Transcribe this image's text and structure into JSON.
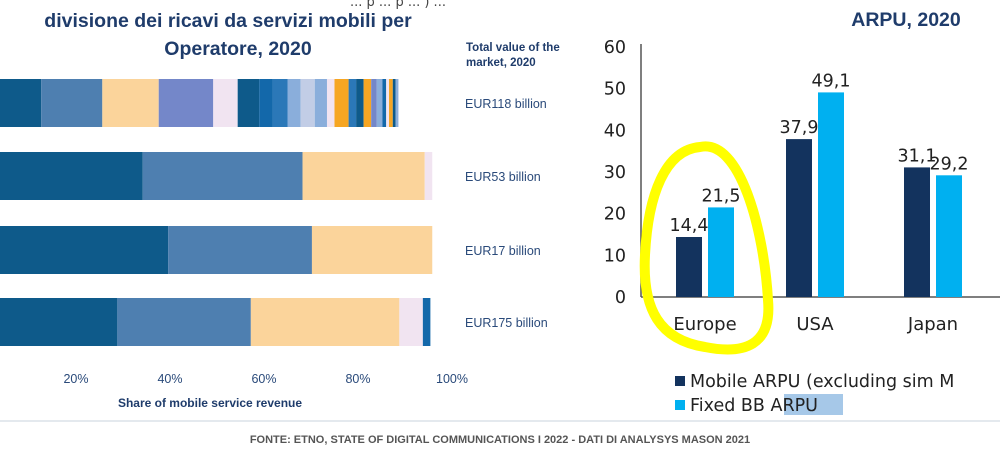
{
  "top_fragment": "... p ... p ... ) ...",
  "left_chart": {
    "title_line1": "divisione dei ricavi da servizi mobili per",
    "title_line2": "Operatore, 2020",
    "totals_header_line1": "Total value of the",
    "totals_header_line2": "market, 2020",
    "xlabel": "Share of mobile service revenue",
    "xticks": [
      "20%",
      "40%",
      "60%",
      "80%",
      "100%"
    ],
    "colors": {
      "c1": "#0e5a8a",
      "c2": "#4e7fb0",
      "c3": "#fbd49b",
      "c4": "#7487c9",
      "c5": "#f1e4f1",
      "c6": "#1368aa",
      "c7": "#2b78b8",
      "c8": "#8aaedb",
      "c9": "#f6a623",
      "c10": "#c2cde6"
    }
  },
  "right_chart": {
    "title": "ARPU, 2020",
    "series_colors": [
      "#13335e",
      "#00b0f0"
    ],
    "highlight_color": "#ffff00",
    "legend_highlight_color": "#a6c8e8"
  },
  "chart_data": [
    {
      "type": "bar",
      "orientation": "horizontal",
      "stacked": true,
      "title": "divisione dei ricavi da servizi mobili per Operatore, 2020",
      "xlabel": "Share of mobile service revenue",
      "xlim": [
        0,
        100
      ],
      "rows": [
        {
          "label": "EUR118 billion",
          "segments": [
            {
              "value": 12.6,
              "color": "c1"
            },
            {
              "value": 13.0,
              "color": "c2"
            },
            {
              "value": 12.0,
              "color": "c3"
            },
            {
              "value": 11.6,
              "color": "c4"
            },
            {
              "value": 5.2,
              "color": "c5"
            },
            {
              "value": 4.6,
              "color": "c1"
            },
            {
              "value": 2.8,
              "color": "c6"
            },
            {
              "value": 3.2,
              "color": "c7"
            },
            {
              "value": 2.8,
              "color": "c8"
            },
            {
              "value": 3.0,
              "color": "c10"
            },
            {
              "value": 2.6,
              "color": "c8"
            },
            {
              "value": 1.6,
              "color": "c5"
            },
            {
              "value": 3.0,
              "color": "c9"
            },
            {
              "value": 1.6,
              "color": "c7"
            },
            {
              "value": 1.6,
              "color": "c1"
            },
            {
              "value": 1.6,
              "color": "c9"
            },
            {
              "value": 1.2,
              "color": "c4"
            },
            {
              "value": 1.2,
              "color": "c8"
            },
            {
              "value": 0.8,
              "color": "c6"
            },
            {
              "value": 0.6,
              "color": "c5"
            },
            {
              "value": 0.8,
              "color": "c9"
            },
            {
              "value": 0.6,
              "color": "c1"
            },
            {
              "value": 0.6,
              "color": "c8"
            }
          ]
        },
        {
          "label": "EUR53 billion",
          "segments": [
            {
              "value": 34.2,
              "color": "c1"
            },
            {
              "value": 34.0,
              "color": "c2"
            },
            {
              "value": 26.0,
              "color": "c3"
            },
            {
              "value": 1.6,
              "color": "c5"
            }
          ]
        },
        {
          "label": "EUR17 billion",
          "segments": [
            {
              "value": 39.6,
              "color": "c1"
            },
            {
              "value": 30.6,
              "color": "c2"
            },
            {
              "value": 25.6,
              "color": "c3"
            }
          ]
        },
        {
          "label": "EUR175 billion",
          "segments": [
            {
              "value": 28.8,
              "color": "c1"
            },
            {
              "value": 28.4,
              "color": "c2"
            },
            {
              "value": 31.6,
              "color": "c3"
            },
            {
              "value": 5.0,
              "color": "c5"
            },
            {
              "value": 1.6,
              "color": "c6"
            }
          ]
        }
      ]
    },
    {
      "type": "bar",
      "title": "ARPU, 2020",
      "categories": [
        "Europe",
        "USA",
        "Japan"
      ],
      "series": [
        {
          "name": "Mobile ARPU (excluding sim M",
          "values": [
            14.4,
            37.9,
            31.1
          ],
          "labels": [
            "14,4",
            "37,9",
            "31,1"
          ]
        },
        {
          "name": "Fixed BB ARPU",
          "values": [
            21.5,
            49.1,
            29.2
          ],
          "labels": [
            "21,5",
            "49,1",
            "29,2"
          ]
        }
      ],
      "ylim": [
        0,
        60
      ],
      "yticks": [
        "0",
        "10",
        "20",
        "30",
        "40",
        "50",
        "60"
      ],
      "grid": false,
      "legend": "bottom",
      "annotation": "yellow hand-drawn circle around Europe"
    }
  ],
  "footer": "FONTE: ETNO, STATE OF DIGITAL COMMUNICATIONS I 2022 - DATI DI ANALYSYS MASON 2021"
}
